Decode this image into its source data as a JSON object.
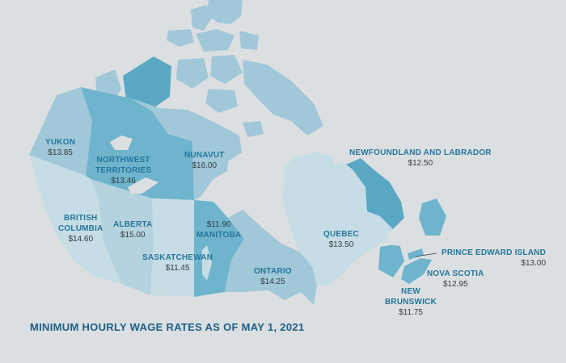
{
  "title": "MINIMUM HOURLY WAGE RATES AS OF MAY 1, 2021",
  "colors": {
    "background": "#dcdfe1",
    "light": "#c6dde5",
    "light2": "#b5d3de",
    "medium": "#a0c8d8",
    "dark": "#6fb4cd",
    "darkest": "#5aa8c4",
    "label": "#24769a",
    "value": "#333c44"
  },
  "provinces": [
    {
      "id": "yukon",
      "name": "YUKON",
      "wage": "$13.85"
    },
    {
      "id": "nwt",
      "name_line1": "NORTHWEST",
      "name_line2": "TERRITORIES",
      "wage": "$13.46"
    },
    {
      "id": "nunavut",
      "name": "NUNAVUT",
      "wage": "$16.00"
    },
    {
      "id": "bc",
      "name_line1": "BRITISH",
      "name_line2": "COLUMBIA",
      "wage": "$14.60"
    },
    {
      "id": "alberta",
      "name": "ALBERTA",
      "wage": "$15.00"
    },
    {
      "id": "saskatchewan",
      "name": "SASKATCHEWAN",
      "wage": "$11.45"
    },
    {
      "id": "manitoba",
      "name": "MANITOBA",
      "wage": "$11.90"
    },
    {
      "id": "ontario",
      "name": "ONTARIO",
      "wage": "$14.25"
    },
    {
      "id": "quebec",
      "name": "QUEBEC",
      "wage": "$13.50"
    },
    {
      "id": "nl",
      "name": "NEWFOUNDLAND AND LABRADOR",
      "wage": "$12.50"
    },
    {
      "id": "pei",
      "name": "PRINCE EDWARD ISLAND",
      "wage": "$13.00"
    },
    {
      "id": "ns",
      "name": "NOVA SCOTIA",
      "wage": "$12.95"
    },
    {
      "id": "nb",
      "name_line1": "NEW",
      "name_line2": "BRUNSWICK",
      "wage": "$11.75"
    }
  ]
}
